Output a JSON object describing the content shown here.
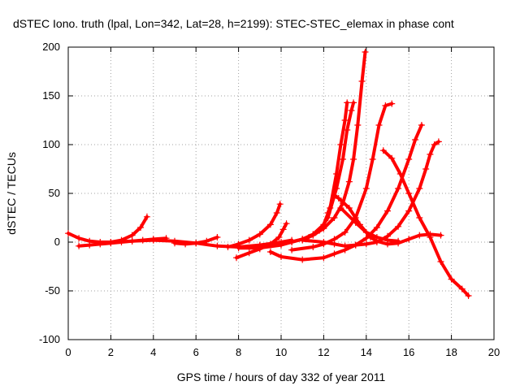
{
  "chart_data": {
    "type": "scatter",
    "title": "dSTEC Iono. truth (lpal, Lon=342, Lat=28, h=2199): STEC-STEC_elemax in phase cont",
    "xlabel": "GPS time / hours of day 332 of year 2011",
    "ylabel": "dSTEC  / TECUs",
    "xlim": [
      0,
      20
    ],
    "ylim": [
      -100,
      200
    ],
    "xticks": [
      0,
      2,
      4,
      6,
      8,
      10,
      12,
      14,
      16,
      18,
      20
    ],
    "yticks": [
      -100,
      -50,
      0,
      50,
      100,
      150,
      200
    ],
    "grid": true,
    "marker": "plus",
    "color": "#ff0000",
    "series": [
      {
        "points": [
          [
            0.0,
            9
          ],
          [
            0.5,
            4
          ],
          [
            1.0,
            1
          ],
          [
            1.5,
            0
          ],
          [
            2.0,
            0
          ],
          [
            2.5,
            2
          ],
          [
            3.0,
            7
          ],
          [
            3.4,
            15
          ],
          [
            3.7,
            26
          ]
        ]
      },
      {
        "points": [
          [
            0.5,
            -4
          ],
          [
            1.0,
            -3
          ],
          [
            1.5,
            -2
          ],
          [
            2.0,
            -1
          ],
          [
            2.5,
            0
          ],
          [
            3.0,
            1
          ],
          [
            3.5,
            2
          ],
          [
            4.0,
            3
          ],
          [
            4.6,
            4
          ]
        ]
      },
      {
        "points": [
          [
            2.0,
            0
          ],
          [
            3.0,
            1
          ],
          [
            4.0,
            2
          ],
          [
            5.0,
            1
          ],
          [
            6.0,
            -1
          ],
          [
            7.0,
            -4
          ],
          [
            8.0,
            -5
          ],
          [
            9.0,
            -3
          ],
          [
            10.0,
            0
          ],
          [
            10.5,
            2
          ]
        ]
      },
      {
        "points": [
          [
            5.0,
            -1
          ],
          [
            5.5,
            -2
          ],
          [
            6.0,
            -1
          ],
          [
            6.5,
            1
          ],
          [
            7.0,
            5
          ]
        ]
      },
      {
        "points": [
          [
            7.5,
            -5
          ],
          [
            8.0,
            -2
          ],
          [
            8.5,
            2
          ],
          [
            9.0,
            8
          ],
          [
            9.5,
            18
          ],
          [
            9.8,
            30
          ],
          [
            9.95,
            39
          ]
        ]
      },
      {
        "points": [
          [
            7.9,
            -16
          ],
          [
            8.5,
            -11
          ],
          [
            9.0,
            -7
          ],
          [
            9.5,
            -2
          ],
          [
            9.9,
            5
          ],
          [
            10.1,
            13
          ],
          [
            10.25,
            19
          ]
        ]
      },
      {
        "points": [
          [
            8.0,
            -6
          ],
          [
            9.0,
            -6
          ],
          [
            10.0,
            -3
          ],
          [
            10.5,
            0
          ],
          [
            11.0,
            3
          ],
          [
            11.5,
            7
          ],
          [
            12.0,
            14
          ],
          [
            12.5,
            25
          ],
          [
            12.9,
            40
          ],
          [
            13.2,
            62
          ],
          [
            13.4,
            85
          ],
          [
            13.6,
            120
          ],
          [
            13.8,
            165
          ],
          [
            13.95,
            195
          ]
        ]
      },
      {
        "points": [
          [
            9.0,
            -4
          ],
          [
            10.0,
            -2
          ],
          [
            11.0,
            3
          ],
          [
            11.5,
            8
          ],
          [
            12.0,
            18
          ],
          [
            12.3,
            35
          ],
          [
            12.6,
            70
          ],
          [
            12.8,
            100
          ],
          [
            13.0,
            125
          ],
          [
            13.1,
            143
          ]
        ]
      },
      {
        "points": [
          [
            9.5,
            -3
          ],
          [
            10.5,
            0
          ],
          [
            11.3,
            5
          ],
          [
            11.8,
            12
          ],
          [
            12.2,
            25
          ],
          [
            12.6,
            55
          ],
          [
            12.9,
            85
          ],
          [
            13.1,
            115
          ],
          [
            13.3,
            135
          ],
          [
            13.4,
            143
          ]
        ]
      },
      {
        "points": [
          [
            10.5,
            -8
          ],
          [
            11.5,
            -5
          ],
          [
            12.0,
            -2
          ],
          [
            12.5,
            3
          ],
          [
            13.0,
            10
          ],
          [
            13.5,
            25
          ],
          [
            14.0,
            55
          ],
          [
            14.3,
            85
          ],
          [
            14.6,
            120
          ],
          [
            14.9,
            140
          ],
          [
            15.2,
            142
          ]
        ]
      },
      {
        "points": [
          [
            9.5,
            -10
          ],
          [
            10.0,
            -15
          ],
          [
            11.0,
            -18
          ],
          [
            12.0,
            -16
          ],
          [
            12.5,
            -12
          ],
          [
            13.0,
            -8
          ],
          [
            13.5,
            -3
          ],
          [
            14.0,
            4
          ],
          [
            14.5,
            15
          ],
          [
            15.0,
            32
          ],
          [
            15.5,
            55
          ],
          [
            16.0,
            85
          ],
          [
            16.3,
            105
          ],
          [
            16.6,
            120
          ]
        ]
      },
      {
        "points": [
          [
            11.0,
            2
          ],
          [
            12.0,
            0
          ],
          [
            12.5,
            -2
          ],
          [
            13.0,
            -4
          ],
          [
            13.5,
            -3
          ],
          [
            14.0,
            -2
          ],
          [
            14.5,
            0
          ],
          [
            15.0,
            6
          ],
          [
            15.5,
            16
          ],
          [
            16.0,
            32
          ],
          [
            16.5,
            55
          ],
          [
            16.8,
            75
          ],
          [
            17.0,
            90
          ],
          [
            17.2,
            100
          ],
          [
            17.4,
            103
          ]
        ]
      },
      {
        "points": [
          [
            12.2,
            30
          ],
          [
            12.5,
            48
          ],
          [
            12.7,
            45
          ],
          [
            13.2,
            35
          ],
          [
            13.7,
            18
          ],
          [
            14.2,
            5
          ],
          [
            14.5,
            1
          ],
          [
            15.0,
            -2
          ],
          [
            15.5,
            -1
          ],
          [
            16.0,
            3
          ],
          [
            16.5,
            7
          ],
          [
            17.0,
            8
          ],
          [
            17.5,
            7
          ]
        ]
      },
      {
        "points": [
          [
            12.8,
            35
          ],
          [
            13.5,
            20
          ],
          [
            14.0,
            10
          ],
          [
            14.5,
            5
          ],
          [
            15.0,
            2
          ],
          [
            15.5,
            1
          ]
        ]
      },
      {
        "points": [
          [
            14.8,
            94
          ],
          [
            15.2,
            86
          ],
          [
            15.6,
            70
          ],
          [
            16.0,
            50
          ],
          [
            16.5,
            25
          ],
          [
            17.0,
            5
          ],
          [
            17.5,
            -20
          ],
          [
            18.0,
            -38
          ],
          [
            18.5,
            -48
          ],
          [
            18.8,
            -55
          ]
        ]
      }
    ]
  }
}
